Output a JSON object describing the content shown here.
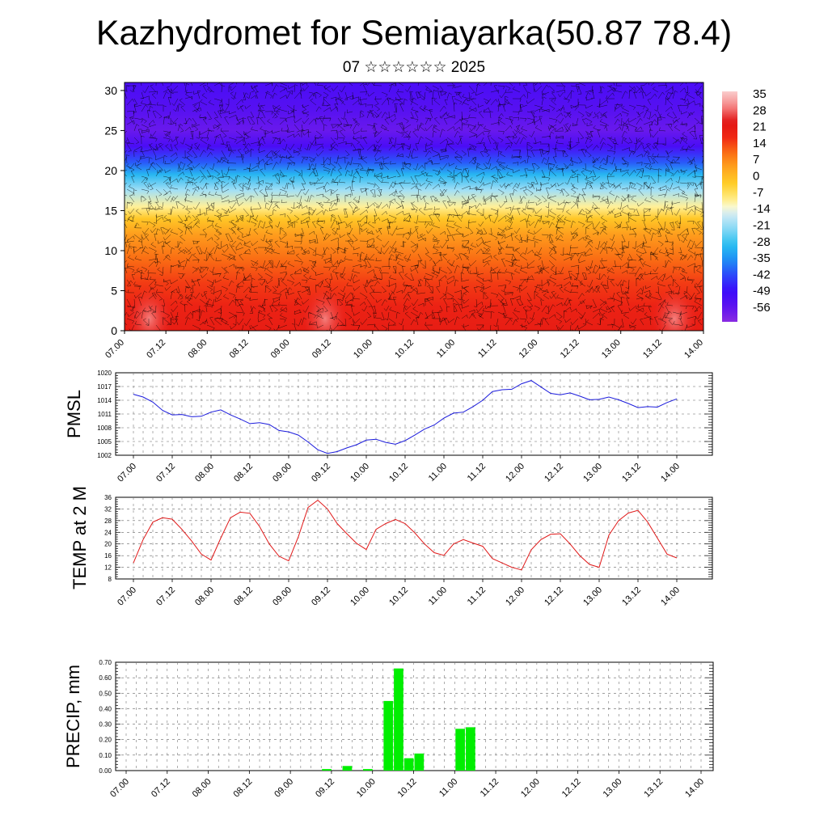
{
  "header": {
    "title": "Kazhydromet for Semiayarka(50.87 78.4)",
    "subtitle": "07 ☆☆☆☆☆☆ 2025"
  },
  "colors": {
    "pressure_line": "#1a1adc",
    "temperature_line": "#e01818",
    "precip_bar": "#00ee00",
    "wind_barbs": "#000000"
  },
  "chart_data": [
    {
      "type": "heatmap",
      "title": "",
      "xlabel": "",
      "ylabel": "",
      "x_ticks": [
        "07.00",
        "07.12",
        "08.00",
        "08.12",
        "09.00",
        "09.12",
        "10.00",
        "10.12",
        "11.00",
        "11.12",
        "12.00",
        "12.12",
        "13.00",
        "13.12",
        "14.00"
      ],
      "y_ticks": [
        0,
        5,
        10,
        15,
        20,
        25,
        30
      ],
      "ylim": [
        0,
        31
      ],
      "colorbar_labels": [
        "35",
        "28",
        "21",
        "14",
        "7",
        "0",
        "-7",
        "-14",
        "-21",
        "-28",
        "-35",
        "-42",
        "-49",
        "-56"
      ],
      "colorbar_range": [
        -63,
        42
      ],
      "overlay": "wind barbs",
      "temperature_by_level": [
        {
          "level": 0,
          "value": 25
        },
        {
          "level": 3,
          "value": 23
        },
        {
          "level": 6,
          "value": 19
        },
        {
          "level": 9,
          "value": 14
        },
        {
          "level": 12,
          "value": 8
        },
        {
          "level": 14,
          "value": 1
        },
        {
          "level": 15.5,
          "value": -8
        },
        {
          "level": 17.5,
          "value": -18
        },
        {
          "level": 19.5,
          "value": -29
        },
        {
          "level": 21,
          "value": -40
        },
        {
          "level": 23,
          "value": -52
        },
        {
          "level": 25,
          "value": -58
        },
        {
          "level": 27.5,
          "value": -55
        },
        {
          "level": 31,
          "value": -52
        }
      ],
      "warm_spots": [
        {
          "x": 4.85,
          "level": 1.5,
          "value": 34
        },
        {
          "x": 13.3,
          "level": 1.5,
          "value": 30
        },
        {
          "x": 0.6,
          "level": 1.5,
          "value": 28
        }
      ]
    },
    {
      "type": "line",
      "ylabel": "PMSL",
      "ylim": [
        1002,
        1020
      ],
      "y_ticks": [
        1002,
        1005,
        1008,
        1011,
        1014,
        1017,
        1020
      ],
      "x_ticks": [
        "07.00",
        "07.12",
        "08.00",
        "08.12",
        "09.00",
        "09.12",
        "10.00",
        "10.12",
        "11.00",
        "11.12",
        "12.00",
        "12.12",
        "13.00",
        "13.12",
        "14.00"
      ],
      "series": [
        {
          "values": [
            1015.3,
            1014.7,
            1013.6,
            1011.8,
            1010.8,
            1010.9,
            1010.4,
            1010.5,
            1011.4,
            1011.9,
            1010.8,
            1009.9,
            1008.9,
            1009.1,
            1008.7,
            1007.4,
            1007.1,
            1006.4,
            1004.9,
            1003.2,
            1002.4,
            1002.8,
            1003.6,
            1004.3,
            1005.3,
            1005.5,
            1004.8,
            1004.4,
            1005.2,
            1006.4,
            1007.7,
            1008.6,
            1010.1,
            1011.2,
            1011.4,
            1012.6,
            1014.0,
            1015.9,
            1016.3,
            1016.4,
            1017.6,
            1018.3,
            1016.9,
            1015.5,
            1015.2,
            1015.6,
            1014.9,
            1014.1,
            1014.2,
            1014.7,
            1014.1,
            1013.3,
            1012.4,
            1012.6,
            1012.5,
            1013.5,
            1014.3
          ]
        }
      ]
    },
    {
      "type": "line",
      "ylabel": "TEMP at 2 M",
      "ylim": [
        8,
        36
      ],
      "y_ticks": [
        8,
        12,
        16,
        20,
        24,
        28,
        32,
        36
      ],
      "x_ticks": [
        "07.00",
        "07.12",
        "08.00",
        "08.12",
        "09.00",
        "09.12",
        "10.00",
        "10.12",
        "11.00",
        "11.12",
        "12.00",
        "12.12",
        "13.00",
        "13.12",
        "14.00"
      ],
      "series": [
        {
          "values": [
            13.5,
            21.5,
            27.5,
            29.0,
            28.5,
            25.0,
            21.0,
            16.5,
            14.5,
            22.0,
            29.0,
            30.9,
            30.5,
            26.0,
            20.0,
            15.8,
            14.2,
            22.5,
            32.5,
            35.0,
            32.0,
            27.0,
            23.5,
            20.2,
            18.1,
            25.0,
            27.0,
            28.4,
            27.0,
            23.8,
            20.0,
            17.0,
            16.1,
            20.0,
            21.5,
            20.3,
            19.2,
            15.0,
            13.5,
            12.0,
            11.1,
            18.0,
            21.5,
            23.3,
            23.5,
            20.0,
            16.0,
            13.0,
            12.0,
            23.0,
            28.0,
            30.6,
            31.5,
            27.5,
            22.0,
            16.5,
            15.2
          ]
        }
      ]
    },
    {
      "type": "bar",
      "ylabel": "PRECIP, mm",
      "ylim": [
        0,
        0.7
      ],
      "y_ticks": [
        "0.00",
        "0.10",
        "0.20",
        "0.30",
        "0.40",
        "0.50",
        "0.60",
        "0.70"
      ],
      "x_ticks": [
        "07.00",
        "07.12",
        "08.00",
        "08.12",
        "09.00",
        "09.12",
        "10.00",
        "10.12",
        "11.00",
        "11.12",
        "12.00",
        "12.12",
        "13.00",
        "13.12",
        "14.00"
      ],
      "categories": [
        "07.00",
        "07.03",
        "07.06",
        "07.09",
        "07.12",
        "07.15",
        "07.18",
        "07.21",
        "08.00",
        "08.03",
        "08.06",
        "08.09",
        "08.12",
        "08.15",
        "08.18",
        "08.21",
        "09.00",
        "09.03",
        "09.06",
        "09.09",
        "09.12",
        "09.15",
        "09.18",
        "09.21",
        "10.00",
        "10.03",
        "10.06",
        "10.09",
        "10.12",
        "10.15",
        "10.18",
        "10.21",
        "11.00",
        "11.03",
        "11.06",
        "11.09",
        "11.12",
        "11.15",
        "11.18",
        "11.21",
        "12.00",
        "12.03",
        "12.06",
        "12.09",
        "12.12",
        "12.15",
        "12.18",
        "12.21",
        "13.00",
        "13.03",
        "13.06",
        "13.09",
        "13.12",
        "13.15",
        "13.18",
        "13.21"
      ],
      "values": [
        0,
        0,
        0,
        0,
        0,
        0,
        0,
        0,
        0,
        0,
        0,
        0,
        0,
        0,
        0,
        0,
        0,
        0,
        0,
        0.01,
        0,
        0.03,
        0,
        0.01,
        0,
        0.45,
        0.66,
        0.08,
        0.11,
        0,
        0,
        0,
        0.27,
        0.28,
        0,
        0,
        0,
        0,
        0,
        0,
        0,
        0,
        0,
        0,
        0,
        0,
        0,
        0,
        0,
        0,
        0,
        0,
        0,
        0,
        0,
        0
      ]
    }
  ]
}
